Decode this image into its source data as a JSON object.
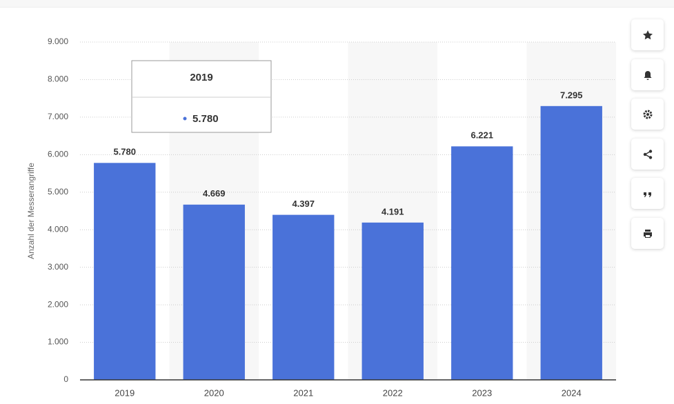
{
  "chart_data": {
    "type": "bar",
    "y_label": "Anzahl der Messerangriffe",
    "categories": [
      "2019",
      "2020",
      "2021",
      "2022",
      "2023",
      "2024"
    ],
    "values": [
      5780,
      4669,
      4397,
      4191,
      6221,
      7295
    ],
    "value_labels": [
      "5.780",
      "4.669",
      "4.397",
      "4.191",
      "6.221",
      "7.295"
    ],
    "color": "#4a72d9",
    "ylim": [
      0,
      9000
    ],
    "yticks": [
      0,
      {
        "value": 1000,
        "label": "1.000"
      },
      {
        "value": 2000,
        "label": "2.000"
      },
      {
        "value": 3000,
        "label": "3.000"
      },
      {
        "value": 4000,
        "label": "4.000"
      },
      {
        "value": 5000,
        "label": "5.000"
      },
      {
        "value": 6000,
        "label": "6.000"
      },
      {
        "value": 7000,
        "label": "7.000"
      },
      {
        "value": 8000,
        "label": "8.000"
      },
      {
        "value": 9000,
        "label": "9.000"
      }
    ],
    "grid": true
  }
}
